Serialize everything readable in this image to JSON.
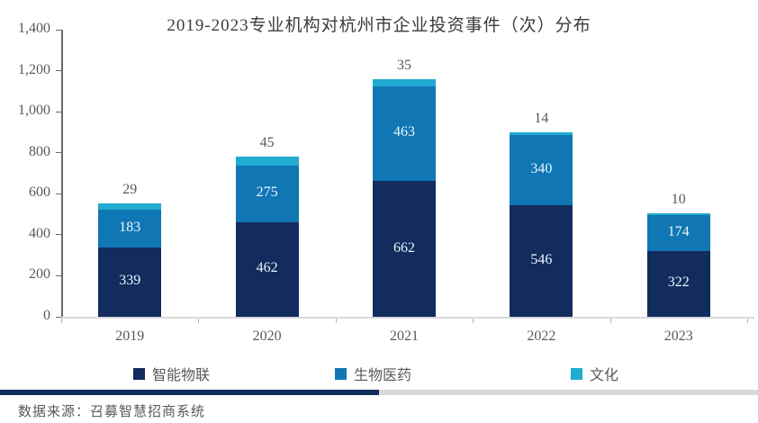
{
  "chart_data": {
    "type": "bar",
    "stacked": true,
    "title": "2019-2023专业机构对杭州市企业投资事件（次）分布",
    "categories": [
      "2019",
      "2020",
      "2021",
      "2022",
      "2023"
    ],
    "series": [
      {
        "name": "智能物联",
        "color": "#122c5e",
        "values": [
          339,
          462,
          662,
          546,
          322
        ],
        "label_placement": "inside",
        "label_color": "#e9f5fb"
      },
      {
        "name": "生物医药",
        "color": "#1076b4",
        "values": [
          183,
          275,
          463,
          340,
          174
        ],
        "label_placement": "inside",
        "label_color": "#e9f5fb"
      },
      {
        "name": "文化",
        "color": "#22abd0",
        "values": [
          29,
          45,
          35,
          14,
          10
        ],
        "label_placement": "above",
        "label_color": "#595959"
      }
    ],
    "ylim": [
      0,
      1400
    ],
    "ytick_interval": 200,
    "ytick_labels": [
      "0",
      "200",
      "400",
      "600",
      "800",
      "1,000",
      "1,200",
      "1,400"
    ],
    "grid": false,
    "legend_position": "bottom",
    "axis_color": "#6a6a6a",
    "baseline_color": "#d9d9d9"
  },
  "footer": {
    "source": "数据来源：召募智慧招商系统",
    "divider_accent_color": "#122c5e"
  }
}
